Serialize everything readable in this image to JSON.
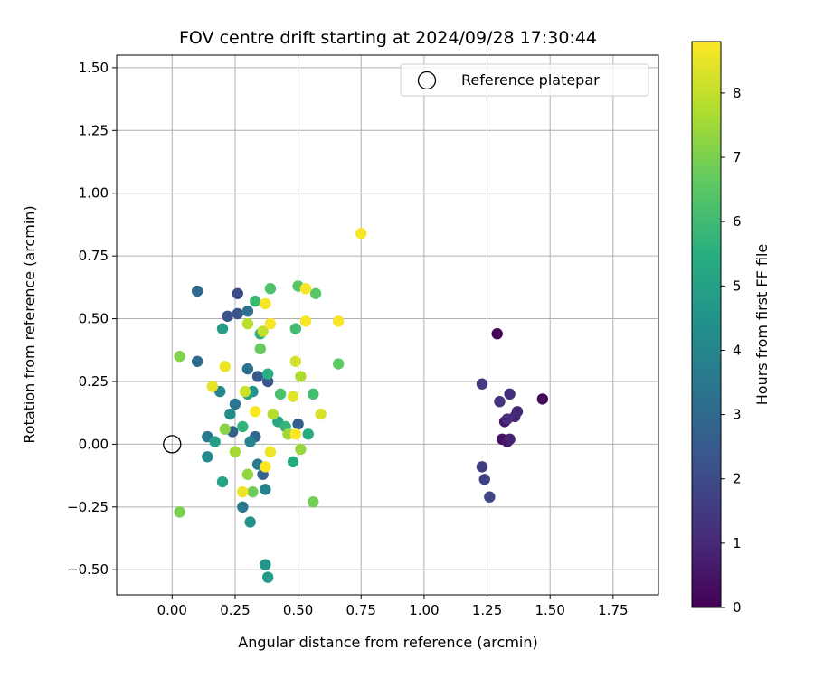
{
  "chart_data": {
    "type": "scatter",
    "title": "FOV centre drift starting at 2024/09/28 17:30:44",
    "xlabel": "Angular distance from reference (arcmin)",
    "ylabel": "Rotation from reference (arcmin)",
    "xlim": [
      -0.22,
      1.93
    ],
    "ylim": [
      -0.6,
      1.55
    ],
    "xticks": [
      0.0,
      0.25,
      0.5,
      0.75,
      1.0,
      1.25,
      1.5,
      1.75
    ],
    "xtick_labels": [
      "0.00",
      "0.25",
      "0.50",
      "0.75",
      "1.00",
      "1.25",
      "1.50",
      "1.75"
    ],
    "yticks": [
      -0.5,
      -0.25,
      0.0,
      0.25,
      0.5,
      0.75,
      1.0,
      1.25,
      1.5
    ],
    "ytick_labels": [
      "−0.50",
      "−0.25",
      "0.00",
      "0.25",
      "0.50",
      "0.75",
      "1.00",
      "1.25",
      "1.50"
    ],
    "grid": true,
    "legend": {
      "placement": "top-right",
      "entries": [
        "Reference platepar"
      ]
    },
    "reference_point": {
      "x": 0.0,
      "y": 0.0
    },
    "colorbar": {
      "label": "Hours from first FF file",
      "min": 0,
      "max": 8.8,
      "ticks": [
        0,
        1,
        2,
        3,
        4,
        5,
        6,
        7,
        8
      ],
      "tick_labels": [
        "0",
        "1",
        "2",
        "3",
        "4",
        "5",
        "6",
        "7",
        "8"
      ],
      "colormap": "viridis"
    },
    "points": [
      {
        "x": 1.29,
        "y": 0.44,
        "h": 0.1
      },
      {
        "x": 1.47,
        "y": 0.18,
        "h": 0.2
      },
      {
        "x": 1.31,
        "y": 0.02,
        "h": 0.4
      },
      {
        "x": 1.32,
        "y": 0.09,
        "h": 0.5
      },
      {
        "x": 1.33,
        "y": 0.01,
        "h": 0.6
      },
      {
        "x": 1.34,
        "y": 0.02,
        "h": 0.8
      },
      {
        "x": 1.37,
        "y": 0.13,
        "h": 0.9
      },
      {
        "x": 1.36,
        "y": 0.11,
        "h": 1.0
      },
      {
        "x": 1.33,
        "y": 0.1,
        "h": 1.1
      },
      {
        "x": 1.34,
        "y": 0.2,
        "h": 1.2
      },
      {
        "x": 1.3,
        "y": 0.17,
        "h": 1.3
      },
      {
        "x": 1.23,
        "y": 0.24,
        "h": 1.5
      },
      {
        "x": 1.23,
        "y": -0.09,
        "h": 1.6
      },
      {
        "x": 1.24,
        "y": -0.14,
        "h": 1.7
      },
      {
        "x": 1.26,
        "y": -0.21,
        "h": 1.8
      },
      {
        "x": 0.26,
        "y": 0.6,
        "h": 2.0
      },
      {
        "x": 0.22,
        "y": 0.51,
        "h": 2.2
      },
      {
        "x": 0.26,
        "y": 0.52,
        "h": 2.3
      },
      {
        "x": 0.38,
        "y": 0.25,
        "h": 2.4
      },
      {
        "x": 0.34,
        "y": 0.27,
        "h": 2.5
      },
      {
        "x": 0.5,
        "y": 0.08,
        "h": 2.6
      },
      {
        "x": 0.24,
        "y": 0.05,
        "h": 2.7
      },
      {
        "x": 0.36,
        "y": -0.12,
        "h": 2.8
      },
      {
        "x": 0.33,
        "y": 0.03,
        "h": 2.9
      },
      {
        "x": 0.1,
        "y": 0.61,
        "h": 3.0
      },
      {
        "x": 0.1,
        "y": 0.33,
        "h": 3.1
      },
      {
        "x": 0.3,
        "y": 0.53,
        "h": 3.2
      },
      {
        "x": 0.3,
        "y": 0.3,
        "h": 3.3
      },
      {
        "x": 0.25,
        "y": 0.16,
        "h": 3.4
      },
      {
        "x": 0.14,
        "y": 0.03,
        "h": 3.5
      },
      {
        "x": 0.28,
        "y": -0.25,
        "h": 3.6
      },
      {
        "x": 0.34,
        "y": -0.08,
        "h": 3.7
      },
      {
        "x": 0.37,
        "y": -0.18,
        "h": 3.8
      },
      {
        "x": 0.31,
        "y": 0.01,
        "h": 3.9
      },
      {
        "x": 0.19,
        "y": 0.21,
        "h": 4.0
      },
      {
        "x": 0.14,
        "y": -0.05,
        "h": 4.2
      },
      {
        "x": 0.23,
        "y": 0.12,
        "h": 4.3
      },
      {
        "x": 0.32,
        "y": 0.21,
        "h": 4.4
      },
      {
        "x": 0.31,
        "y": -0.31,
        "h": 4.5
      },
      {
        "x": 0.37,
        "y": -0.48,
        "h": 4.6
      },
      {
        "x": 0.38,
        "y": -0.53,
        "h": 4.7
      },
      {
        "x": 0.2,
        "y": 0.46,
        "h": 4.8
      },
      {
        "x": 0.17,
        "y": 0.01,
        "h": 4.9
      },
      {
        "x": 0.3,
        "y": 0.2,
        "h": 5.0
      },
      {
        "x": 0.2,
        "y": -0.15,
        "h": 5.1
      },
      {
        "x": 0.42,
        "y": 0.09,
        "h": 5.2
      },
      {
        "x": 0.48,
        "y": -0.07,
        "h": 5.3
      },
      {
        "x": 0.54,
        "y": 0.04,
        "h": 5.4
      },
      {
        "x": 0.38,
        "y": 0.28,
        "h": 5.5
      },
      {
        "x": 0.35,
        "y": 0.44,
        "h": 5.6
      },
      {
        "x": 0.28,
        "y": 0.07,
        "h": 5.7
      },
      {
        "x": 0.45,
        "y": 0.07,
        "h": 5.8
      },
      {
        "x": 0.33,
        "y": 0.57,
        "h": 5.9
      },
      {
        "x": 0.49,
        "y": 0.46,
        "h": 6.0
      },
      {
        "x": 0.56,
        "y": 0.2,
        "h": 6.1
      },
      {
        "x": 0.43,
        "y": 0.2,
        "h": 6.2
      },
      {
        "x": 0.39,
        "y": 0.62,
        "h": 6.3
      },
      {
        "x": 0.5,
        "y": 0.63,
        "h": 6.4
      },
      {
        "x": 0.57,
        "y": 0.6,
        "h": 6.5
      },
      {
        "x": 0.66,
        "y": 0.32,
        "h": 6.6
      },
      {
        "x": 0.35,
        "y": 0.38,
        "h": 6.7
      },
      {
        "x": 0.32,
        "y": -0.19,
        "h": 6.8
      },
      {
        "x": 0.56,
        "y": -0.23,
        "h": 6.9
      },
      {
        "x": 0.03,
        "y": -0.27,
        "h": 7.0
      },
      {
        "x": 0.03,
        "y": 0.35,
        "h": 7.1
      },
      {
        "x": 0.21,
        "y": 0.06,
        "h": 7.2
      },
      {
        "x": 0.3,
        "y": -0.12,
        "h": 7.3
      },
      {
        "x": 0.51,
        "y": -0.02,
        "h": 7.4
      },
      {
        "x": 0.46,
        "y": 0.04,
        "h": 7.5
      },
      {
        "x": 0.25,
        "y": -0.03,
        "h": 7.6
      },
      {
        "x": 0.51,
        "y": 0.27,
        "h": 7.7
      },
      {
        "x": 0.4,
        "y": 0.12,
        "h": 7.8
      },
      {
        "x": 0.3,
        "y": 0.48,
        "h": 7.9
      },
      {
        "x": 0.36,
        "y": 0.45,
        "h": 8.0
      },
      {
        "x": 0.29,
        "y": 0.21,
        "h": 8.1
      },
      {
        "x": 0.49,
        "y": 0.33,
        "h": 8.2
      },
      {
        "x": 0.59,
        "y": 0.12,
        "h": 8.3
      },
      {
        "x": 0.48,
        "y": 0.19,
        "h": 8.4
      },
      {
        "x": 0.16,
        "y": 0.23,
        "h": 8.5
      },
      {
        "x": 0.21,
        "y": 0.31,
        "h": 8.55
      },
      {
        "x": 0.28,
        "y": -0.19,
        "h": 8.6
      },
      {
        "x": 0.39,
        "y": -0.03,
        "h": 8.6
      },
      {
        "x": 0.75,
        "y": 0.84,
        "h": 8.7
      },
      {
        "x": 0.53,
        "y": 0.62,
        "h": 8.7
      },
      {
        "x": 0.66,
        "y": 0.49,
        "h": 8.7
      },
      {
        "x": 0.53,
        "y": 0.49,
        "h": 8.7
      },
      {
        "x": 0.37,
        "y": 0.56,
        "h": 8.7
      },
      {
        "x": 0.39,
        "y": 0.48,
        "h": 8.7
      },
      {
        "x": 0.33,
        "y": 0.13,
        "h": 8.75
      },
      {
        "x": 0.37,
        "y": -0.09,
        "h": 8.75
      },
      {
        "x": 0.49,
        "y": 0.04,
        "h": 8.8
      }
    ]
  }
}
